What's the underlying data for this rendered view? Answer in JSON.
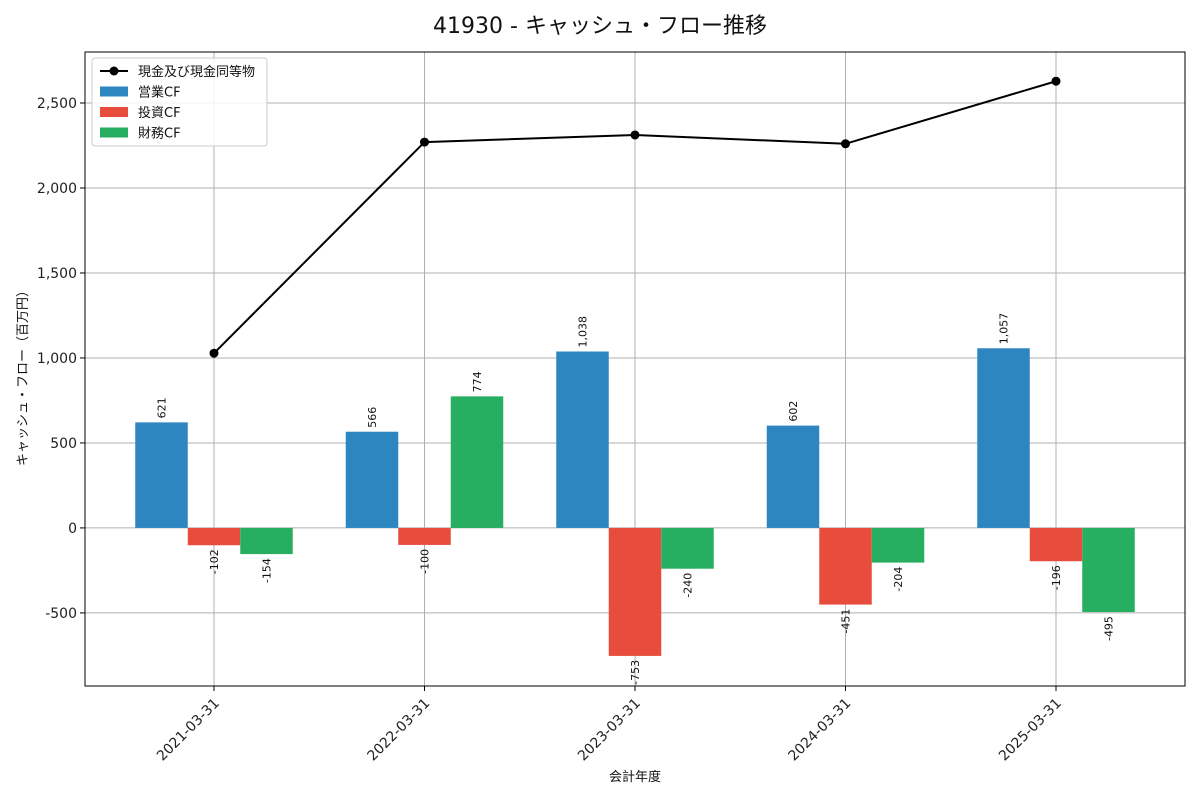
{
  "chart_data": {
    "type": "bar",
    "title": "41930 - キャッシュ・フロー推移",
    "xlabel": "会計年度",
    "ylabel": "キャッシュ・フロー（百万円）",
    "categories": [
      "2021-03-31",
      "2022-03-31",
      "2023-03-31",
      "2024-03-31",
      "2025-03-31"
    ],
    "ylim": [
      -930,
      2800
    ],
    "yticks": [
      -500,
      0,
      500,
      1000,
      1500,
      2000,
      2500
    ],
    "ytick_labels": [
      "-500",
      "0",
      "500",
      "1,000",
      "1,500",
      "2,000",
      "2,500"
    ],
    "grid": true,
    "legend_position": "top-left",
    "series": [
      {
        "name": "営業CF",
        "kind": "bar",
        "color": "#2e86c1",
        "values": [
          621,
          566,
          1038,
          602,
          1057
        ],
        "labels": [
          "621",
          "566",
          "1,038",
          "602",
          "1,057"
        ]
      },
      {
        "name": "投資CF",
        "kind": "bar",
        "color": "#e74c3c",
        "values": [
          -102,
          -100,
          -753,
          -451,
          -196
        ],
        "labels": [
          "-102",
          "-100",
          "-753",
          "-451",
          "-196"
        ]
      },
      {
        "name": "財務CF",
        "kind": "bar",
        "color": "#27ae60",
        "values": [
          -154,
          774,
          -240,
          -204,
          -495
        ],
        "labels": [
          "-154",
          "774",
          "-240",
          "-204",
          "-495"
        ]
      }
    ],
    "line": {
      "name": "現金及び現金同等物",
      "color": "#000000",
      "values": [
        1028,
        2270,
        2312,
        2260,
        2628
      ]
    }
  }
}
